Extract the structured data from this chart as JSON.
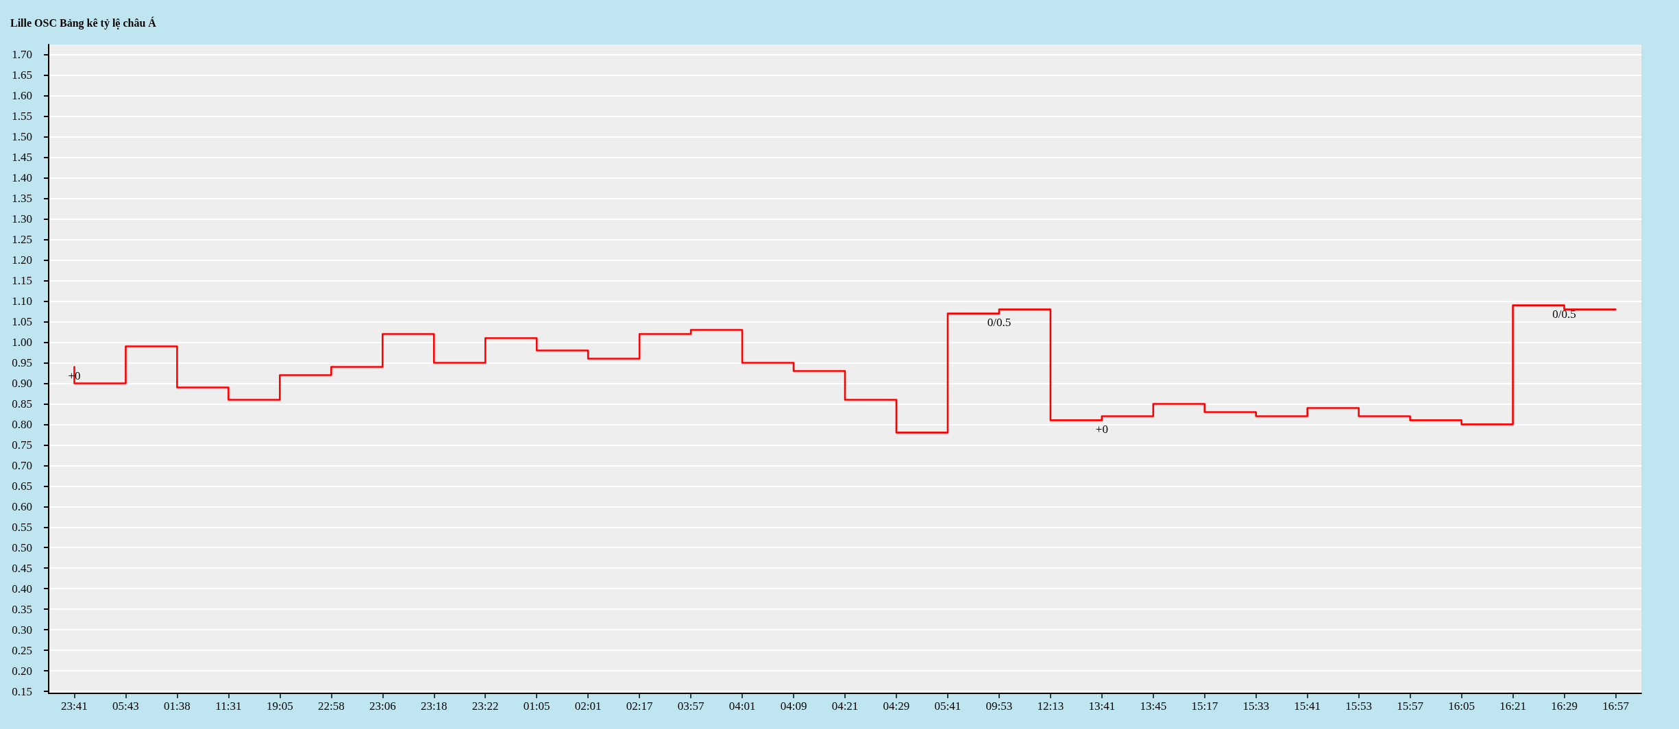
{
  "chart_data": {
    "type": "step",
    "title": "Lille OSC Bảng kê tỷ lệ châu Á",
    "categories": [
      "23:41",
      "05:43",
      "01:38",
      "11:31",
      "19:05",
      "22:58",
      "23:06",
      "23:18",
      "23:22",
      "01:05",
      "02:01",
      "02:17",
      "03:57",
      "04:01",
      "04:09",
      "04:21",
      "04:29",
      "05:41",
      "09:53",
      "12:13",
      "13:41",
      "13:45",
      "15:17",
      "15:33",
      "15:41",
      "15:53",
      "15:57",
      "16:05",
      "16:21",
      "16:29",
      "16:57"
    ],
    "values": [
      0.94,
      0.9,
      0.99,
      0.89,
      0.86,
      0.92,
      0.94,
      1.02,
      0.95,
      1.01,
      0.98,
      0.96,
      1.02,
      1.03,
      0.95,
      0.93,
      0.86,
      0.78,
      1.07,
      1.08,
      0.81,
      0.82,
      0.85,
      0.83,
      0.82,
      0.84,
      0.82,
      0.81,
      0.8,
      1.09,
      1.08
    ],
    "color": "#ff0000",
    "ylim": [
      0.145,
      1.725
    ],
    "yticks": [
      0.15,
      {
        "value": 0.2,
        "label": "0.20"
      },
      0.25,
      {
        "value": 0.3,
        "label": "0.30"
      },
      0.35,
      {
        "value": 0.4,
        "label": "0.40"
      },
      0.45,
      {
        "value": 0.5,
        "label": "0.50"
      },
      0.55,
      {
        "value": 0.6,
        "label": "0.60"
      },
      0.65,
      {
        "value": 0.7,
        "label": "0.70"
      },
      0.75,
      {
        "value": 0.8,
        "label": "0.80"
      },
      0.85,
      {
        "value": 0.9,
        "label": "0.90"
      },
      0.95,
      {
        "value": 1,
        "label": "1.00"
      },
      1.05,
      {
        "value": 1.1,
        "label": "1.10"
      },
      1.15,
      {
        "value": 1.2,
        "label": "1.20"
      },
      1.25,
      {
        "value": 1.3,
        "label": "1.30"
      },
      1.35,
      {
        "value": 1.4,
        "label": "1.40"
      },
      1.45,
      {
        "value": 1.5,
        "label": "1.50"
      },
      1.55,
      {
        "value": 1.6,
        "label": "1.60"
      },
      1.65,
      {
        "value": 1.7,
        "label": "1.70"
      }
    ],
    "annotations": [
      {
        "text": "+0",
        "x": "23:41",
        "y": 0.94
      },
      {
        "text": "0/0.5",
        "x": "09:53",
        "y": 1.07
      },
      {
        "text": "+0",
        "x": "13:41",
        "y": 0.81
      },
      {
        "text": "0/0.5",
        "x": "16:29",
        "y": 1.09
      }
    ],
    "grid": "y",
    "marker": "none"
  }
}
